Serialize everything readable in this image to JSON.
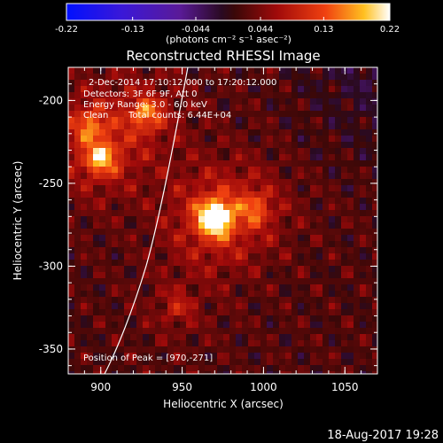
{
  "colorbar": {
    "ticks": [
      "-0.22",
      "-0.13",
      "-0.044",
      "0.044",
      "0.13",
      "0.22"
    ],
    "range": [
      -0.22,
      0.22
    ],
    "units": "(photons cm⁻² s⁻¹ asec⁻²)"
  },
  "chart_data": {
    "type": "heatmap",
    "title": "Reconstructed RHESSI Image",
    "xlabel": "Heliocentric X (arcsec)",
    "ylabel": "Heliocentric Y (arcsec)",
    "xlim": [
      880,
      1070
    ],
    "ylim": [
      -365,
      -180
    ],
    "xticks": [
      "900",
      "950",
      "1000",
      "1050"
    ],
    "yticks": [
      "-200",
      "-250",
      "-300",
      "-350"
    ],
    "annotations": [
      "2-Dec-2014 17:10:12.000 to 17:20:12.000",
      "Detectors: 3F 6F 9F, Att 0",
      "Energy Range: 3.0 - 6.0 keV",
      "Clean",
      "Total counts: 6.44E+04",
      "Position of Peak = [970,-271]"
    ],
    "peak": [
      970,
      -271
    ],
    "sources": [
      {
        "x": 970,
        "y": -271,
        "value": 0.22
      },
      {
        "x": 900,
        "y": -235,
        "value": 0.12
      },
      {
        "x": 928,
        "y": -208,
        "value": 0.1
      },
      {
        "x": 893,
        "y": -215,
        "value": 0.08
      },
      {
        "x": 995,
        "y": -265,
        "value": 0.07
      },
      {
        "x": 947,
        "y": -325,
        "value": 0.05
      }
    ],
    "colormap": "blue-purple-red-yellow-white"
  },
  "footer": {
    "timestamp": "18-Aug-2017 19:28"
  }
}
